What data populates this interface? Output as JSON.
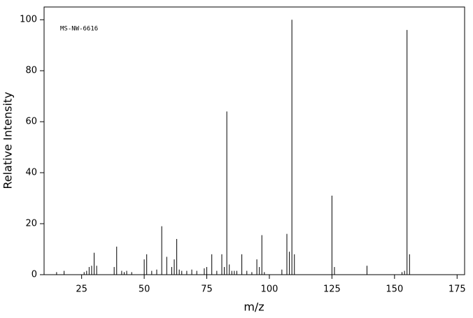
{
  "chart_data": {
    "type": "bar",
    "annotation": "MS-NW-6616",
    "xlabel": "m/z",
    "ylabel": "Relative Intensity",
    "x": [
      15,
      18,
      26,
      27,
      28,
      29,
      30,
      31,
      38,
      39,
      41,
      42,
      43,
      45,
      50,
      51,
      53,
      55,
      57,
      59,
      61,
      62,
      63,
      64,
      65,
      67,
      69,
      71,
      74,
      75,
      77,
      79,
      81,
      82,
      83,
      84,
      85,
      86,
      87,
      89,
      91,
      93,
      95,
      96,
      97,
      98,
      105,
      107,
      108,
      109,
      110,
      125,
      126,
      139,
      153,
      154,
      155,
      156
    ],
    "values": [
      1,
      1.5,
      1,
      1.5,
      3,
      3.5,
      8.6,
      3.5,
      3,
      11,
      1.5,
      1,
      1.5,
      1,
      6,
      8,
      1.5,
      2,
      19,
      7,
      3,
      6,
      14,
      2,
      1.5,
      1.5,
      2,
      1.5,
      2.5,
      3,
      8,
      1.5,
      8,
      3,
      64,
      4,
      1.5,
      1.5,
      1.5,
      8,
      1.5,
      1,
      6,
      3,
      15.5,
      1,
      2,
      16,
      9,
      100,
      8,
      31,
      3,
      3.5,
      1,
      1.5,
      96,
      8
    ],
    "color": "#000000",
    "xlim": [
      10,
      178
    ],
    "xticks": [
      25,
      50,
      75,
      100,
      125,
      150,
      175
    ],
    "ylim": [
      0,
      105
    ],
    "yticks": [
      0,
      20,
      40,
      60,
      80,
      100
    ]
  }
}
